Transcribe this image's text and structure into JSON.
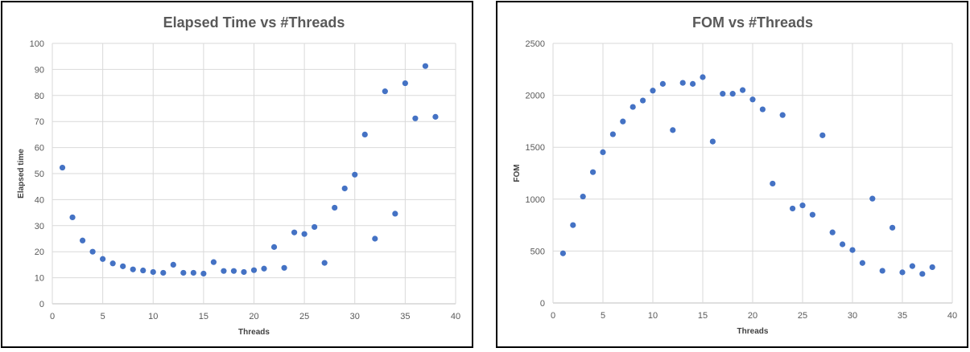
{
  "colors": {
    "marker": "#4472c4",
    "grid": "#d9d9d9",
    "text": "#595959"
  },
  "chart_data": [
    {
      "type": "scatter",
      "title": "Elapsed Time vs #Threads",
      "xlabel": "Threads",
      "ylabel": "Elapsed time",
      "xlim": [
        0,
        40
      ],
      "ylim": [
        0,
        100
      ],
      "xticks": [
        0,
        5,
        10,
        15,
        20,
        25,
        30,
        35,
        40
      ],
      "yticks": [
        0,
        10,
        20,
        30,
        40,
        50,
        60,
        70,
        80,
        90,
        100
      ],
      "grid": true,
      "legend": "none",
      "x": [
        1,
        2,
        3,
        4,
        5,
        6,
        7,
        8,
        9,
        10,
        11,
        12,
        13,
        14,
        15,
        16,
        17,
        18,
        19,
        20,
        21,
        22,
        23,
        24,
        25,
        26,
        27,
        28,
        29,
        30,
        31,
        32,
        33,
        34,
        35,
        36,
        37,
        38
      ],
      "y": [
        52.3,
        33.2,
        24.3,
        20.0,
        17.2,
        15.5,
        14.4,
        13.2,
        12.8,
        12.2,
        11.9,
        15.0,
        11.9,
        11.9,
        11.6,
        16.0,
        12.6,
        12.6,
        12.2,
        12.9,
        13.5,
        21.8,
        13.8,
        27.4,
        26.8,
        29.5,
        15.7,
        36.9,
        44.3,
        49.6,
        65.0,
        25.0,
        81.6,
        34.6,
        84.7,
        71.2,
        91.3,
        71.8
      ]
    },
    {
      "type": "scatter",
      "title": "FOM vs #Threads",
      "xlabel": "Threads",
      "ylabel": "FOM",
      "xlim": [
        0,
        40
      ],
      "ylim": [
        0,
        2500
      ],
      "xticks": [
        0,
        5,
        10,
        15,
        20,
        25,
        30,
        35,
        40
      ],
      "yticks": [
        0,
        500,
        1000,
        1500,
        2000,
        2500
      ],
      "grid": true,
      "legend": "none",
      "x": [
        1,
        2,
        3,
        4,
        5,
        6,
        7,
        8,
        9,
        10,
        11,
        12,
        13,
        14,
        15,
        16,
        17,
        18,
        19,
        20,
        21,
        22,
        23,
        24,
        25,
        26,
        27,
        28,
        29,
        30,
        31,
        32,
        33,
        34,
        35,
        36,
        37,
        38
      ],
      "y": [
        478,
        750,
        1025,
        1260,
        1452,
        1625,
        1748,
        1888,
        1950,
        2045,
        2110,
        1665,
        2120,
        2110,
        2175,
        1555,
        2015,
        2015,
        2050,
        1960,
        1865,
        1150,
        1810,
        910,
        940,
        850,
        1615,
        680,
        565,
        510,
        385,
        1005,
        310,
        725,
        295,
        355,
        280,
        345
      ]
    }
  ]
}
